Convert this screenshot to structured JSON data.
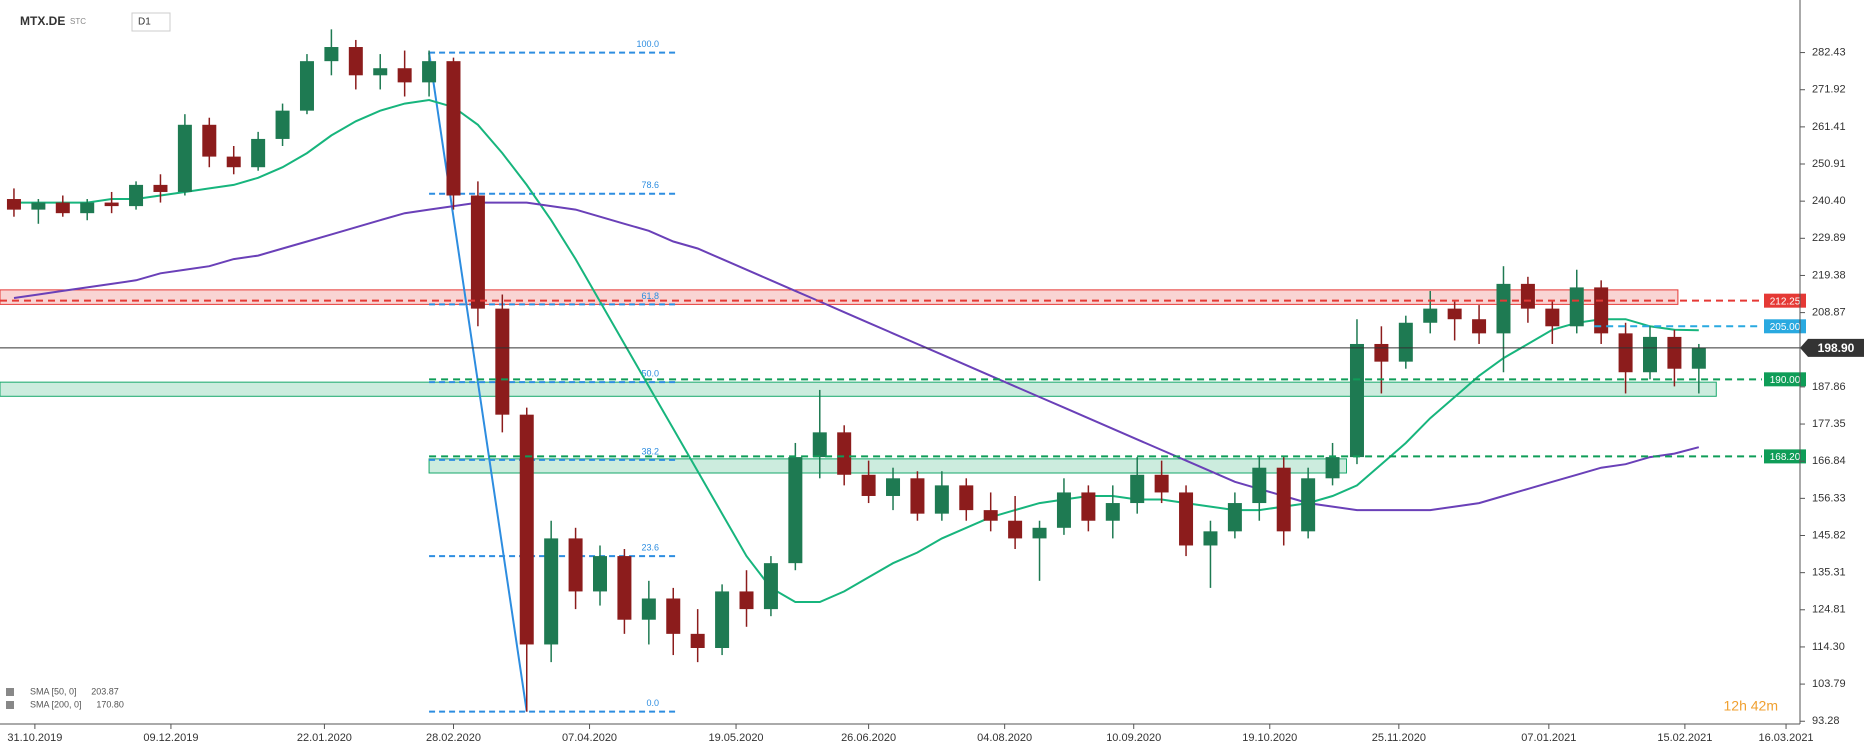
{
  "chart_data": {
    "type": "candlestick",
    "symbol": "MTX.DE",
    "source": "STC",
    "interval": "D1",
    "countdown": "12h 42m",
    "x": [
      "25.10.2019",
      "01.11.2019",
      "08.11.2019",
      "15.11.2019",
      "22.11.2019",
      "29.11.2019",
      "06.12.2019",
      "13.12.2019",
      "20.12.2019",
      "27.12.2019",
      "03.01.2020",
      "10.01.2020",
      "17.01.2020",
      "24.01.2020",
      "31.01.2020",
      "07.02.2020",
      "14.02.2020",
      "21.02.2020",
      "28.02.2020",
      "06.03.2020",
      "13.03.2020",
      "20.03.2020",
      "27.03.2020",
      "03.04.2020",
      "10.04.2020",
      "17.04.2020",
      "24.04.2020",
      "01.05.2020",
      "08.05.2020",
      "15.05.2020",
      "22.05.2020",
      "29.05.2020",
      "05.06.2020",
      "12.06.2020",
      "19.06.2020",
      "26.06.2020",
      "03.07.2020",
      "10.07.2020",
      "17.07.2020",
      "24.07.2020",
      "31.07.2020",
      "07.08.2020",
      "14.08.2020",
      "21.08.2020",
      "28.08.2020",
      "04.09.2020",
      "11.09.2020",
      "18.09.2020",
      "25.09.2020",
      "02.10.2020",
      "09.10.2020",
      "16.10.2020",
      "23.10.2020",
      "30.10.2020",
      "06.11.2020",
      "13.11.2020",
      "20.11.2020",
      "27.11.2020",
      "04.12.2020",
      "11.12.2020",
      "18.12.2020",
      "25.12.2020",
      "01.01.2021",
      "08.01.2021",
      "15.01.2021",
      "22.01.2021",
      "29.01.2021",
      "05.02.2021",
      "12.02.2021",
      "19.02.2021"
    ],
    "open": [
      241,
      238,
      240,
      237,
      240,
      239,
      245,
      243,
      262,
      253,
      250,
      258,
      266,
      280,
      284,
      276,
      278,
      274,
      280,
      242,
      210,
      180,
      115,
      145,
      130,
      140,
      122,
      128,
      118,
      114,
      130,
      125,
      138,
      168,
      175,
      163,
      157,
      162,
      152,
      160,
      153,
      150,
      145,
      148,
      158,
      150,
      155,
      163,
      158,
      143,
      147,
      155,
      165,
      147,
      162,
      168,
      200,
      195,
      206,
      210,
      207,
      203,
      217,
      210,
      205,
      216,
      203,
      192,
      202,
      193
    ],
    "high": [
      244,
      241,
      242,
      241,
      243,
      246,
      248,
      265,
      264,
      256,
      260,
      268,
      282,
      289,
      286,
      282,
      283,
      283,
      281,
      246,
      214,
      182,
      150,
      148,
      143,
      142,
      133,
      131,
      125,
      132,
      136,
      140,
      172,
      187,
      177,
      167,
      165,
      164,
      164,
      162,
      158,
      157,
      150,
      162,
      160,
      160,
      168,
      167,
      160,
      150,
      158,
      168,
      168,
      165,
      172,
      207,
      205,
      208,
      215,
      212,
      211,
      222,
      219,
      212,
      221,
      218,
      206,
      205,
      204,
      200
    ],
    "low": [
      236,
      234,
      236,
      235,
      237,
      238,
      240,
      242,
      250,
      248,
      249,
      256,
      265,
      276,
      272,
      272,
      270,
      270,
      238,
      205,
      175,
      96,
      110,
      125,
      126,
      118,
      115,
      112,
      110,
      112,
      120,
      123,
      136,
      162,
      160,
      155,
      153,
      150,
      150,
      150,
      147,
      142,
      133,
      146,
      147,
      145,
      152,
      155,
      140,
      131,
      145,
      150,
      143,
      145,
      160,
      166,
      186,
      193,
      203,
      201,
      200,
      192,
      206,
      200,
      203,
      200,
      186,
      190,
      188,
      186
    ],
    "close": [
      238,
      240,
      237,
      240,
      239,
      245,
      243,
      262,
      253,
      250,
      258,
      266,
      280,
      284,
      276,
      278,
      274,
      280,
      242,
      210,
      180,
      115,
      145,
      130,
      140,
      122,
      128,
      118,
      114,
      130,
      125,
      138,
      168,
      175,
      163,
      157,
      162,
      152,
      160,
      153,
      150,
      145,
      148,
      158,
      150,
      155,
      163,
      158,
      143,
      147,
      155,
      165,
      147,
      162,
      168,
      200,
      195,
      206,
      210,
      207,
      203,
      217,
      210,
      205,
      216,
      203,
      192,
      202,
      193,
      198.9
    ],
    "up_color": "#1e7a52",
    "down_color": "#8c1c1c",
    "series": [
      {
        "name": "SMA [50, 0]",
        "legend_label": "203.87",
        "color": "#17b57d",
        "values": [
          240,
          240,
          240,
          240,
          241,
          241,
          242,
          243,
          244,
          245,
          247,
          250,
          254,
          259,
          263,
          266,
          268,
          269,
          267,
          262,
          254,
          245,
          235,
          224,
          212,
          200,
          188,
          176,
          164,
          152,
          140,
          131,
          127,
          127,
          130,
          134,
          138,
          141,
          145,
          148,
          151,
          153,
          155,
          156,
          157,
          157,
          156,
          156,
          155,
          154,
          153,
          153,
          154,
          155,
          157,
          160,
          166,
          172,
          179,
          185,
          191,
          196,
          200,
          204,
          206,
          207,
          207,
          205,
          204,
          203.87
        ]
      },
      {
        "name": "SMA [200, 0]",
        "legend_label": "170.80",
        "color": "#6a40b8",
        "values": [
          213,
          214,
          215,
          216,
          217,
          218,
          220,
          221,
          222,
          224,
          225,
          227,
          229,
          231,
          233,
          235,
          237,
          238,
          239,
          240,
          240,
          240,
          239,
          238,
          236,
          234,
          232,
          229,
          227,
          224,
          221,
          218,
          215,
          212,
          209,
          206,
          203,
          200,
          197,
          194,
          191,
          188,
          185,
          182,
          179,
          176,
          173,
          170,
          167,
          164,
          161,
          159,
          157,
          155,
          154,
          153,
          153,
          153,
          153,
          154,
          155,
          157,
          159,
          161,
          163,
          165,
          166,
          168,
          169,
          170.8
        ]
      }
    ],
    "fib": {
      "x": [
        "21.02.2020",
        "20.03.2020"
      ],
      "color": "#2d8de0",
      "levels": [
        {
          "price": 282.43,
          "ratio": "100.0"
        },
        {
          "price": 242.5,
          "ratio": "78.6"
        },
        {
          "price": 211.2,
          "ratio": "61.8"
        },
        {
          "price": 189.2,
          "ratio": "50.0"
        },
        {
          "price": 167.2,
          "ratio": "38.2"
        },
        {
          "price": 140.0,
          "ratio": "23.6"
        },
        {
          "price": 96.0,
          "ratio": "0.0"
        }
      ]
    },
    "zones": [
      {
        "ylim": [
          211.2,
          215.3
        ],
        "x": [
          "21.10.2019",
          "13.02.2021"
        ],
        "color": "#e53935"
      },
      {
        "ylim": [
          185.2,
          189.2
        ],
        "x": [
          "21.10.2019",
          "24.02.2021"
        ],
        "color": "#17a86b"
      },
      {
        "ylim": [
          163.5,
          167.5
        ],
        "x": [
          "21.02.2020",
          "10.11.2020"
        ],
        "color": "#17a86b"
      }
    ],
    "levels": [
      {
        "value": 212.25,
        "label": "212.25",
        "color": "#e53935",
        "from": "21.10.2019"
      },
      {
        "value": 205,
        "label": "205.00",
        "color": "#29a9e0",
        "from": "20.01.2021"
      },
      {
        "value": 190,
        "label": "190.00",
        "color": "#0f9d58",
        "from": "21.02.2020"
      },
      {
        "value": 168.2,
        "label": "168.20",
        "color": "#0f9d58",
        "from": "21.02.2020"
      }
    ],
    "current": {
      "value": 198.9,
      "label": "198.90",
      "color": "#333333"
    },
    "xlim": [
      "21.10.2019",
      "20.03.2021"
    ],
    "ylim": [
      92.5,
      297.3
    ],
    "yticks": [
      93.28,
      103.79,
      {
        "value": 114.3,
        "label": "114.30"
      },
      124.81,
      135.31,
      145.82,
      156.33,
      166.84,
      177.35,
      187.86,
      208.87,
      219.38,
      229.89,
      {
        "value": 240.4,
        "label": "240.40"
      },
      250.91,
      261.41,
      271.92,
      282.43
    ],
    "xticks": [
      "31.10.2019",
      "09.12.2019",
      "22.01.2020",
      "28.02.2020",
      "07.04.2020",
      "19.05.2020",
      "26.06.2020",
      "04.08.2020",
      "10.09.2020",
      "19.10.2020",
      "25.11.2020",
      "07.01.2021",
      "15.02.2021",
      "16.03.2021"
    ]
  }
}
